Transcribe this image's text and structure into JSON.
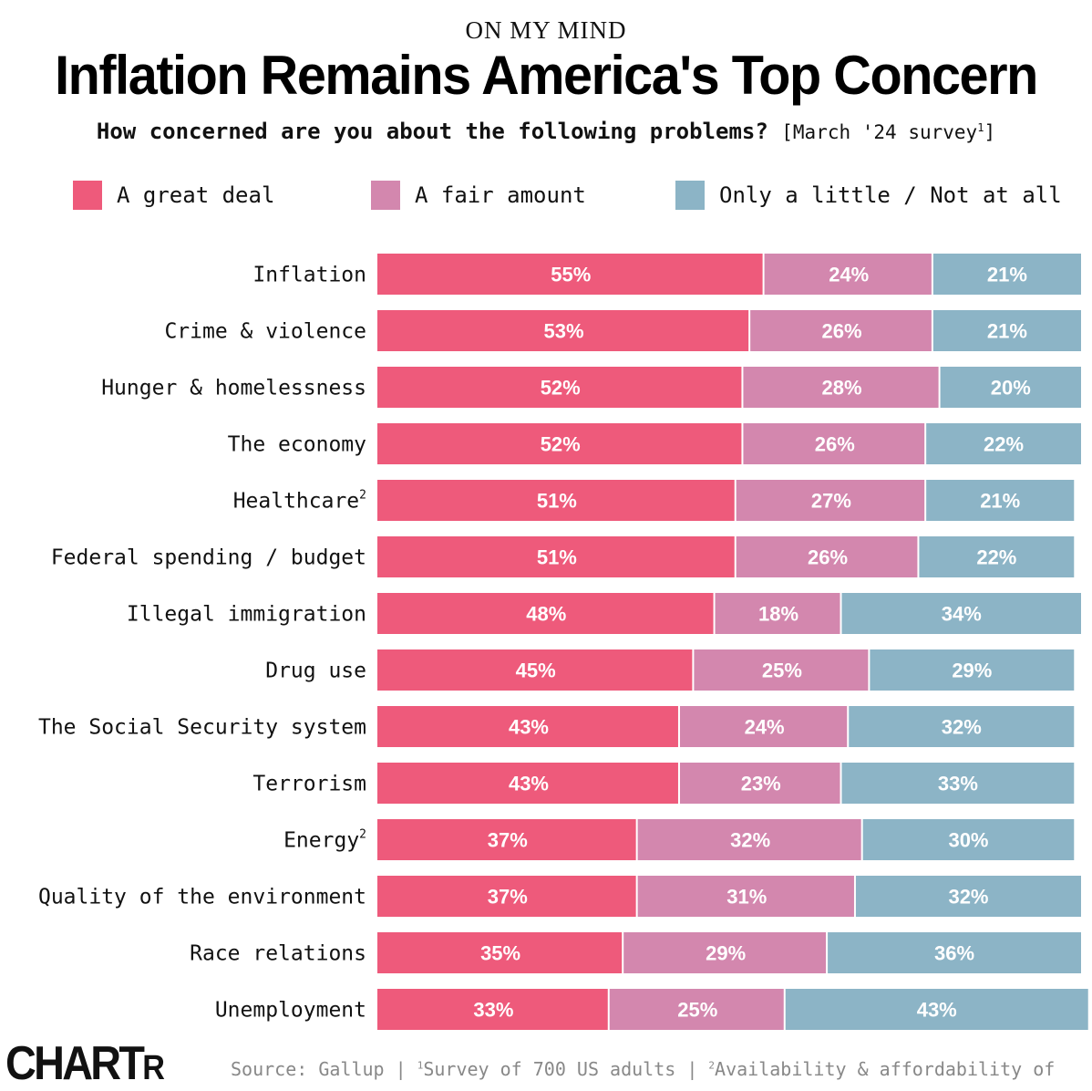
{
  "header": {
    "kicker": "ON MY MIND",
    "title": "Inflation Remains America's Top Concern",
    "question": "How concerned are you about the following problems?",
    "note_prefix": "[March '24 survey",
    "note_sup": "1",
    "note_suffix": "]"
  },
  "colors": {
    "great": "#ee5a7b",
    "fair": "#d387ae",
    "little": "#8cb4c6"
  },
  "chart_data": {
    "type": "bar",
    "orientation": "horizontal",
    "stacked": true,
    "legend_position": "top",
    "series": [
      {
        "name": "A great deal",
        "values": [
          55,
          53,
          52,
          52,
          51,
          51,
          48,
          45,
          43,
          43,
          37,
          37,
          35,
          33
        ]
      },
      {
        "name": "A fair amount",
        "values": [
          24,
          26,
          28,
          26,
          27,
          26,
          18,
          25,
          24,
          23,
          32,
          31,
          29,
          25
        ]
      },
      {
        "name": "Only a little / Not at all",
        "values": [
          21,
          21,
          20,
          22,
          21,
          22,
          34,
          29,
          32,
          33,
          30,
          32,
          36,
          43
        ]
      }
    ],
    "categories": [
      {
        "label": "Inflation",
        "sup": ""
      },
      {
        "label": "Crime & violence",
        "sup": ""
      },
      {
        "label": "Hunger & homelessness",
        "sup": ""
      },
      {
        "label": "The economy",
        "sup": ""
      },
      {
        "label": "Healthcare",
        "sup": "2"
      },
      {
        "label": "Federal spending / budget",
        "sup": ""
      },
      {
        "label": "Illegal immigration",
        "sup": ""
      },
      {
        "label": "Drug use",
        "sup": ""
      },
      {
        "label": "The Social Security system",
        "sup": ""
      },
      {
        "label": "Terrorism",
        "sup": ""
      },
      {
        "label": "Energy",
        "sup": "2"
      },
      {
        "label": "Quality of the environment",
        "sup": ""
      },
      {
        "label": "Race relations",
        "sup": ""
      },
      {
        "label": "Unemployment",
        "sup": ""
      }
    ],
    "value_suffix": "%",
    "xlim": [
      0,
      100
    ]
  },
  "footer": {
    "logo_main": "CHART",
    "logo_small": "R",
    "source_text": "Source: Gallup | ",
    "source_sup1": "1",
    "source_mid": "Survey of 700 US adults | ",
    "source_sup2": "2",
    "source_end": "Availability & affordability of"
  }
}
